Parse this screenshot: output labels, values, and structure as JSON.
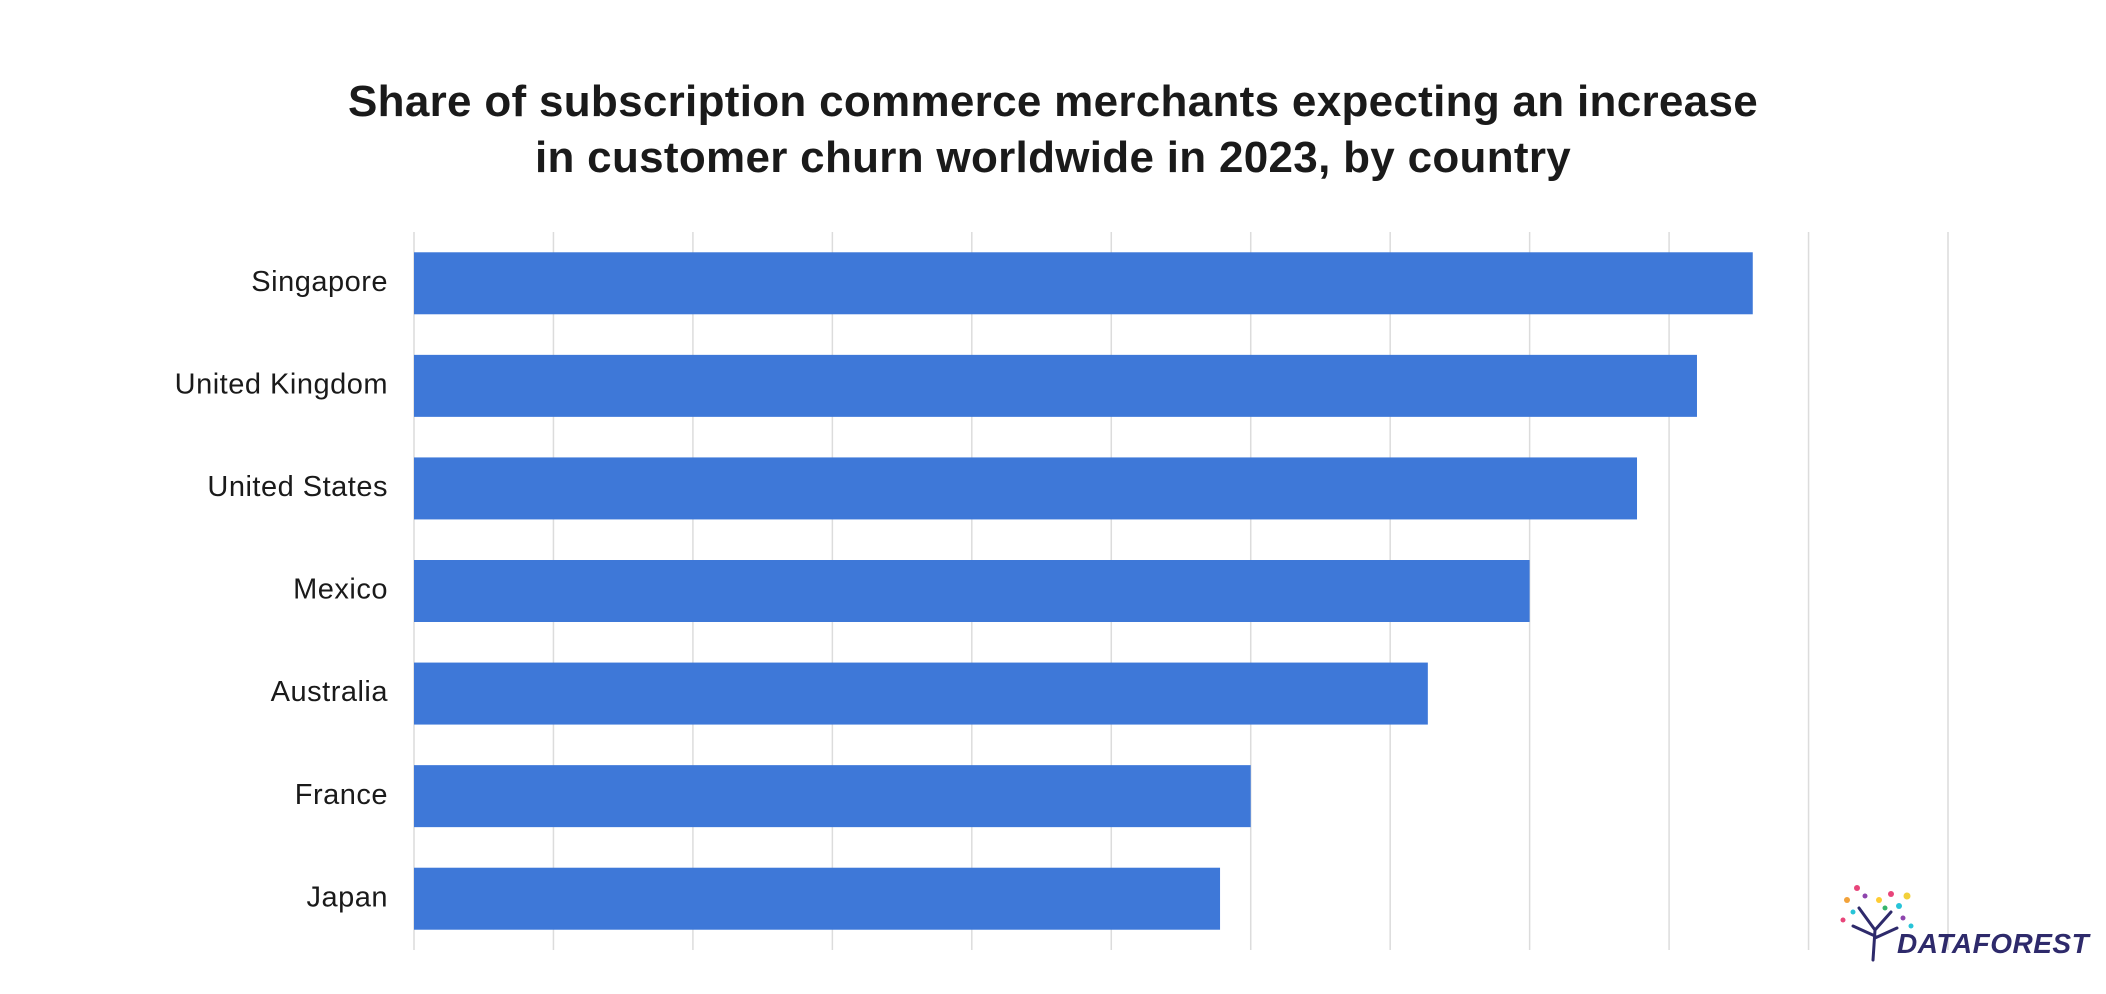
{
  "chart_data": {
    "type": "bar",
    "orientation": "horizontal",
    "title_lines": [
      "Share of subscription commerce merchants expecting an increase",
      "in customer churn worldwide in 2023, by country"
    ],
    "categories": [
      "Singapore",
      "United Kingdom",
      "United States",
      "Mexico",
      "Australia",
      "France",
      "Japan"
    ],
    "values": [
      96,
      92,
      87.7,
      80,
      72.7,
      60,
      57.8
    ],
    "xlim": [
      0,
      110
    ],
    "grid_step": 10,
    "grid": true,
    "legend": "none",
    "bar_color": "#3e78d8",
    "grid_color": "#dcdcdc"
  },
  "brand": {
    "logo_text": "DATAFOREST",
    "logo_icon": "tree-icon",
    "logo_color": "#2e2a6b"
  }
}
